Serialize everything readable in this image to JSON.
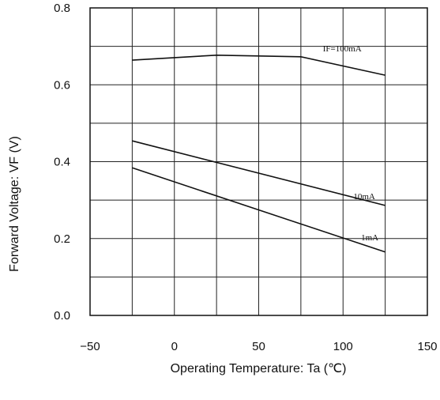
{
  "chart_data": {
    "type": "line",
    "xlabel": "Operating Temperature: Ta (℃)",
    "ylabel": "Forward Voltage: VF (V)",
    "xlim": [
      -50,
      150
    ],
    "ylim": [
      0.0,
      0.8
    ],
    "x_ticks": [
      "−50",
      "0",
      "50",
      "100",
      "150"
    ],
    "y_ticks": [
      "0.0",
      "0.2",
      "0.4",
      "0.6",
      "0.8"
    ],
    "grid": true,
    "series": [
      {
        "name": "IF=100mA",
        "x": [
          -25,
          25,
          75,
          125
        ],
        "values": [
          0.664,
          0.677,
          0.673,
          0.625
        ]
      },
      {
        "name": "10mA",
        "x": [
          -25,
          125
        ],
        "values": [
          0.454,
          0.286
        ]
      },
      {
        "name": "1mA",
        "x": [
          -25,
          125
        ],
        "values": [
          0.384,
          0.165
        ]
      }
    ],
    "line_color": "#111111"
  }
}
